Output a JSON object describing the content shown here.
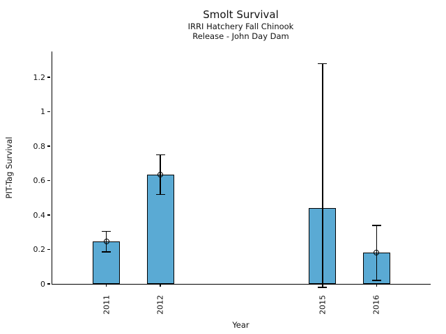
{
  "chart_data": {
    "type": "bar",
    "title": "Smolt Survival",
    "subtitle": [
      "IRRI Hatchery Fall Chinook",
      "Release - John Day Dam"
    ],
    "xlabel": "Year",
    "ylabel": "PIT-Tag Survival",
    "x": [
      2011,
      2012,
      2015,
      2016
    ],
    "x_tick_labels": [
      "2011",
      "2012",
      "2015",
      "2016"
    ],
    "values": [
      0.245,
      0.635,
      0.44,
      0.18
    ],
    "error_low": [
      0.185,
      0.52,
      -0.02,
      0.02
    ],
    "error_high": [
      0.305,
      0.75,
      1.28,
      0.34
    ],
    "point_marker": [
      true,
      true,
      false,
      true
    ],
    "xlim": [
      2010,
      2017
    ],
    "ylim": [
      0,
      1.35
    ],
    "y_ticks": [
      0,
      0.2,
      0.4,
      0.6,
      0.8,
      1,
      1.2
    ],
    "y_tick_labels": [
      "0",
      "0.2",
      "0.4",
      "0.6",
      "0.8",
      "1",
      "1.2"
    ],
    "bar_width_years": 0.5,
    "bar_color": "#5AAAD4",
    "bar_edge_color": "#000000",
    "grid": false,
    "legend": "none"
  }
}
